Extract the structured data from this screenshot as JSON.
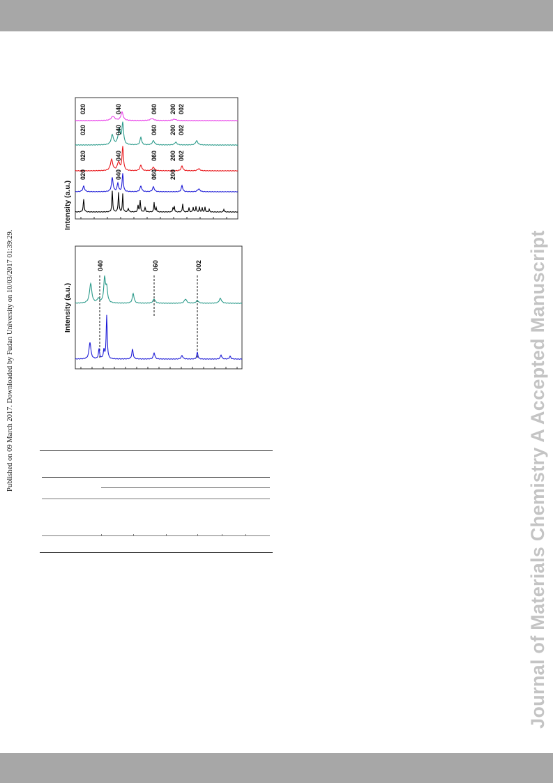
{
  "page": {
    "side_note": "Published on 09 March 2017. Downloaded by Fudan University on 10/03/2017 01:39:29.",
    "watermark": "Journal of Materials Chemistry A Accepted Manuscript"
  },
  "colors": {
    "band": "#a7a7a7",
    "watermark": "#c4c4c4",
    "black": "#000000",
    "blue": "#1c1ad6",
    "red": "#e8171b",
    "teal": "#2a9a8a",
    "magenta": "#e83ee8"
  },
  "chart_data": [
    {
      "type": "line",
      "ylabel": "Intensity (a.u.)",
      "series": [
        {
          "color": "#e83ee8",
          "peak_labels": [
            "020",
            "040",
            "060",
            "200",
            "002"
          ]
        },
        {
          "color": "#2a9a8a",
          "peak_labels": [
            "020",
            "040",
            "060",
            "200",
            "002"
          ]
        },
        {
          "color": "#e8171b",
          "peak_labels": [
            "020",
            "040",
            "060",
            "200",
            "002"
          ]
        },
        {
          "color": "#1c1ad6",
          "peak_labels": [
            "020",
            "040",
            "060",
            "200"
          ]
        },
        {
          "color": "#000000",
          "peak_labels": []
        }
      ]
    },
    {
      "type": "line",
      "ylabel": "Intensity (a.u.)",
      "annotations": [
        "040",
        "060",
        "002"
      ],
      "series": [
        {
          "color": "#2a9a8a"
        },
        {
          "color": "#1c1ad6"
        }
      ]
    }
  ]
}
